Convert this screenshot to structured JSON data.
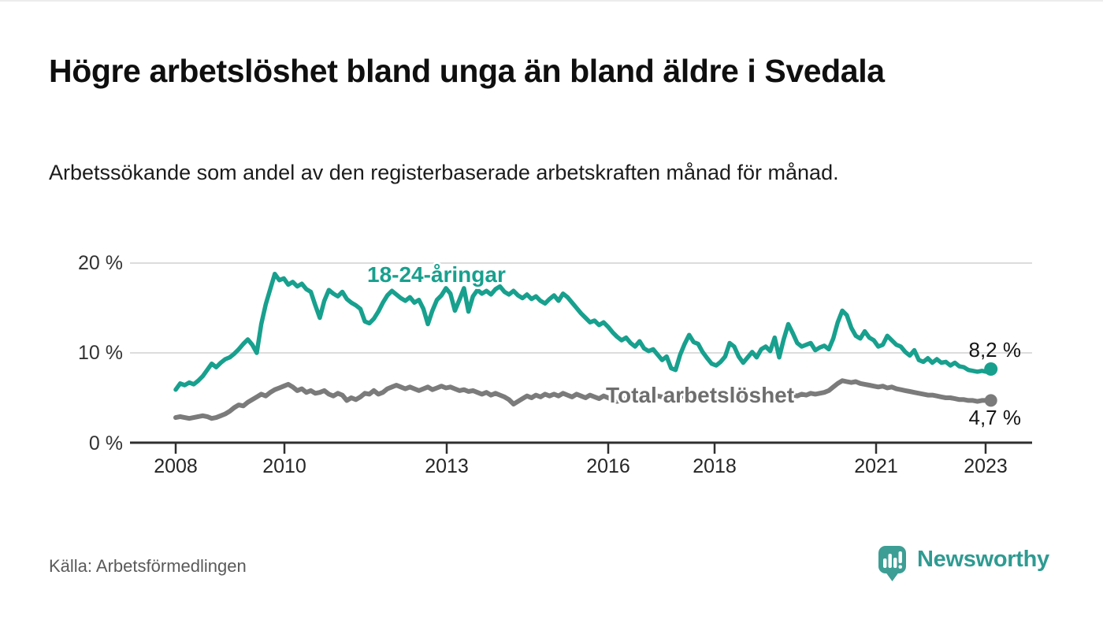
{
  "header": {
    "title": "Högre arbetslöshet bland unga än bland äldre i Svedala",
    "subtitle": "Arbetssökande som andel av den registerbaserade arbetskraften månad för månad."
  },
  "footer": {
    "source": "Källa: Arbetsförmedlingen",
    "brand": "Newsworthy"
  },
  "colors": {
    "youth_line": "#18a08e",
    "total_line": "#7b7b7b",
    "total_label": "#6e6e6e",
    "axis": "#2f2f2f",
    "gridline": "#dcdcdc",
    "brand_teal": "#2e9b92"
  },
  "chart_data": {
    "type": "line",
    "title": "Högre arbetslöshet bland unga än bland äldre i Svedala",
    "subtitle": "Arbetssökande som andel av den registerbaserade arbetskraften månad för månad.",
    "x_unit": "monthly, Jan 2008 – Feb 2023",
    "x_range_years": [
      2008.0,
      2023.083
    ],
    "ylim": [
      0,
      21.5
    ],
    "grid": "horizontal",
    "y_tick_labels": [
      "20 %",
      "10 %",
      "0 %"
    ],
    "y_tick_values": [
      20,
      10,
      0
    ],
    "x_tick_labels": [
      "2008",
      "2010",
      "2013",
      "2016",
      "2018",
      "2021",
      "2023"
    ],
    "series": [
      {
        "name": "18-24-åringar",
        "color": "#18a08e",
        "end_label": "8,2 %",
        "end_value": 8.2,
        "values": [
          5.9,
          6.6,
          6.4,
          6.7,
          6.5,
          6.9,
          7.4,
          8.1,
          8.8,
          8.4,
          8.9,
          9.3,
          9.5,
          9.9,
          10.4,
          11.0,
          11.5,
          10.9,
          10.0,
          13.2,
          15.4,
          17.1,
          18.8,
          18.1,
          18.3,
          17.6,
          17.9,
          17.4,
          17.7,
          17.1,
          16.8,
          15.3,
          13.9,
          15.8,
          17.0,
          16.6,
          16.3,
          16.8,
          16.0,
          15.6,
          15.3,
          14.9,
          13.5,
          13.3,
          13.8,
          14.6,
          15.6,
          16.4,
          16.9,
          16.5,
          16.1,
          15.8,
          16.2,
          15.6,
          15.9,
          14.9,
          13.2,
          14.7,
          15.9,
          16.4,
          17.2,
          16.6,
          14.7,
          15.9,
          17.2,
          14.6,
          16.3,
          17.0,
          16.6,
          16.9,
          16.5,
          17.1,
          17.4,
          16.8,
          16.5,
          16.9,
          16.4,
          16.1,
          16.5,
          16.0,
          16.3,
          15.8,
          15.5,
          16.0,
          16.4,
          15.8,
          16.6,
          16.2,
          15.6,
          15.0,
          14.4,
          13.9,
          13.4,
          13.6,
          13.1,
          13.4,
          12.9,
          12.3,
          11.8,
          11.4,
          11.7,
          11.1,
          10.7,
          11.3,
          10.5,
          10.2,
          10.4,
          9.8,
          9.2,
          9.6,
          8.3,
          8.1,
          9.8,
          11.0,
          12.0,
          11.2,
          11.0,
          10.1,
          9.4,
          8.8,
          8.6,
          9.0,
          9.6,
          11.1,
          10.7,
          9.6,
          8.9,
          9.5,
          10.1,
          9.5,
          10.4,
          10.7,
          10.2,
          11.7,
          9.5,
          11.5,
          13.2,
          12.2,
          11.1,
          10.7,
          10.9,
          11.1,
          10.3,
          10.6,
          10.8,
          10.4,
          11.6,
          13.4,
          14.7,
          14.2,
          12.8,
          11.9,
          11.6,
          12.4,
          11.7,
          11.4,
          10.7,
          10.9,
          11.9,
          11.4,
          10.9,
          10.7,
          10.1,
          9.7,
          10.3,
          9.2,
          9.0,
          9.4,
          8.9,
          9.3,
          8.9,
          9.0,
          8.6,
          8.9,
          8.5,
          8.4,
          8.1,
          8.0,
          7.9,
          8.0,
          7.9,
          8.2
        ]
      },
      {
        "name": "Total arbetslöshet",
        "color": "#7b7b7b",
        "end_label": "4,7 %",
        "end_value": 4.7,
        "values": [
          2.8,
          2.9,
          2.8,
          2.7,
          2.8,
          2.9,
          3.0,
          2.9,
          2.7,
          2.8,
          3.0,
          3.2,
          3.5,
          3.9,
          4.2,
          4.1,
          4.5,
          4.8,
          5.1,
          5.4,
          5.2,
          5.6,
          5.9,
          6.1,
          6.3,
          6.5,
          6.2,
          5.8,
          6.0,
          5.6,
          5.8,
          5.5,
          5.6,
          5.8,
          5.4,
          5.2,
          5.5,
          5.3,
          4.7,
          5.0,
          4.8,
          5.1,
          5.5,
          5.4,
          5.8,
          5.4,
          5.6,
          6.0,
          6.2,
          6.4,
          6.2,
          6.0,
          6.2,
          6.0,
          5.8,
          6.0,
          6.2,
          5.9,
          6.1,
          6.3,
          6.1,
          6.2,
          6.0,
          5.8,
          5.9,
          5.7,
          5.8,
          5.6,
          5.4,
          5.6,
          5.3,
          5.5,
          5.3,
          5.1,
          4.8,
          4.3,
          4.6,
          4.9,
          5.2,
          5.0,
          5.3,
          5.1,
          5.4,
          5.2,
          5.4,
          5.2,
          5.5,
          5.3,
          5.1,
          5.4,
          5.2,
          5.0,
          5.3,
          5.1,
          4.9,
          5.2,
          5.0,
          4.8,
          4.6,
          4.7,
          4.9,
          5.1,
          5.0,
          5.2,
          5.1,
          4.9,
          5.0,
          5.2,
          5.1,
          5.0,
          4.9,
          5.0,
          5.1,
          5.2,
          5.1,
          5.0,
          5.2,
          5.1,
          5.0,
          5.1,
          5.0,
          4.9,
          5.0,
          5.1,
          5.0,
          4.9,
          5.0,
          5.1,
          5.2,
          5.1,
          5.0,
          5.1,
          5.2,
          5.1,
          5.0,
          5.1,
          5.2,
          5.3,
          5.2,
          5.4,
          5.3,
          5.5,
          5.4,
          5.5,
          5.6,
          5.8,
          6.2,
          6.6,
          6.9,
          6.8,
          6.7,
          6.8,
          6.6,
          6.5,
          6.4,
          6.3,
          6.2,
          6.3,
          6.1,
          6.2,
          6.0,
          5.9,
          5.8,
          5.7,
          5.6,
          5.5,
          5.4,
          5.3,
          5.3,
          5.2,
          5.1,
          5.0,
          5.0,
          4.9,
          4.8,
          4.8,
          4.7,
          4.7,
          4.6,
          4.7,
          4.7,
          4.7
        ]
      }
    ]
  }
}
